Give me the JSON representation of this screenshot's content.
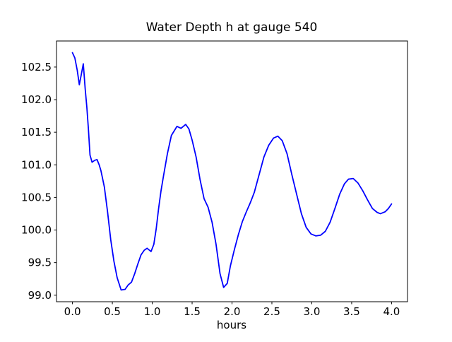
{
  "colors": {
    "background": "#ffffff",
    "axes": "#000000",
    "text": "#000000",
    "line": "#0000ff"
  },
  "chart_data": {
    "type": "line",
    "title": "Water Depth h at gauge 540",
    "xlabel": "hours",
    "ylabel": "",
    "grid": false,
    "legend": "none",
    "xlim": [
      -0.2,
      4.2
    ],
    "ylim": [
      98.9,
      102.9
    ],
    "xticks": {
      "values": [
        0.0,
        0.5,
        1.0,
        1.5,
        2.0,
        2.5,
        3.0,
        3.5,
        4.0
      ],
      "labels": [
        "0.0",
        "0.5",
        "1.0",
        "1.5",
        "2.0",
        "2.5",
        "3.0",
        "3.5",
        "4.0"
      ]
    },
    "yticks": {
      "values": [
        99.0,
        99.5,
        100.0,
        100.5,
        101.0,
        101.5,
        102.0,
        102.5
      ],
      "labels": [
        "99.0",
        "99.5",
        "100.0",
        "100.5",
        "101.0",
        "101.5",
        "102.0",
        "102.5"
      ]
    },
    "series": [
      {
        "name": "water-depth-h",
        "color": "#0000ff",
        "x": [
          0.0,
          0.03,
          0.06,
          0.086,
          0.11,
          0.136,
          0.16,
          0.18,
          0.2,
          0.22,
          0.246,
          0.28,
          0.308,
          0.335,
          0.357,
          0.4,
          0.44,
          0.48,
          0.52,
          0.56,
          0.61,
          0.66,
          0.7,
          0.74,
          0.78,
          0.82,
          0.86,
          0.9,
          0.935,
          0.985,
          1.02,
          1.05,
          1.08,
          1.11,
          1.14,
          1.19,
          1.24,
          1.31,
          1.36,
          1.42,
          1.46,
          1.5,
          1.55,
          1.6,
          1.65,
          1.7,
          1.75,
          1.8,
          1.85,
          1.895,
          1.94,
          1.98,
          2.03,
          2.08,
          2.13,
          2.18,
          2.23,
          2.28,
          2.34,
          2.4,
          2.46,
          2.52,
          2.575,
          2.63,
          2.69,
          2.75,
          2.81,
          2.87,
          2.93,
          2.99,
          3.05,
          3.11,
          3.17,
          3.23,
          3.29,
          3.35,
          3.41,
          3.46,
          3.52,
          3.58,
          3.64,
          3.7,
          3.76,
          3.82,
          3.86,
          3.92,
          3.96,
          4.0
        ],
        "y": [
          102.72,
          102.64,
          102.45,
          102.23,
          102.38,
          102.55,
          102.16,
          101.89,
          101.55,
          101.15,
          101.04,
          101.07,
          101.08,
          101.0,
          100.91,
          100.66,
          100.28,
          99.85,
          99.52,
          99.27,
          99.08,
          99.09,
          99.16,
          99.2,
          99.33,
          99.48,
          99.62,
          99.69,
          99.72,
          99.67,
          99.78,
          100.02,
          100.33,
          100.6,
          100.82,
          101.17,
          101.45,
          101.59,
          101.56,
          101.62,
          101.55,
          101.38,
          101.12,
          100.77,
          100.48,
          100.35,
          100.12,
          99.78,
          99.33,
          99.12,
          99.18,
          99.45,
          99.7,
          99.93,
          100.13,
          100.28,
          100.42,
          100.58,
          100.85,
          101.12,
          101.3,
          101.41,
          101.44,
          101.37,
          101.17,
          100.85,
          100.55,
          100.25,
          100.04,
          99.94,
          99.91,
          99.92,
          99.98,
          100.12,
          100.33,
          100.55,
          100.71,
          100.78,
          100.79,
          100.72,
          100.6,
          100.46,
          100.33,
          100.27,
          100.25,
          100.28,
          100.33,
          100.4
        ]
      }
    ]
  }
}
